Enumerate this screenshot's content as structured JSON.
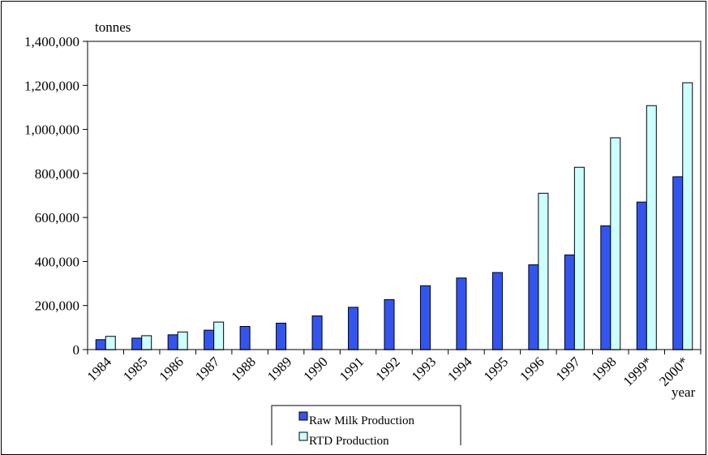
{
  "chart_data": {
    "type": "bar",
    "ylabel": "tonnes",
    "xlabel": "year",
    "ylim": [
      0,
      1400000
    ],
    "yticks": [
      "0",
      "200,000",
      "400,000",
      "600,000",
      "800,000",
      "1,000,000",
      "1,200,000",
      "1,400,000"
    ],
    "ytick_values": [
      0,
      200000,
      400000,
      600000,
      800000,
      1000000,
      1200000,
      1400000
    ],
    "categories": [
      "1984",
      "1985",
      "1986",
      "1987",
      "1988",
      "1989",
      "1990",
      "1991",
      "1992",
      "1993",
      "1994",
      "1995",
      "1996",
      "1997",
      "1998",
      "1999*",
      "2000*"
    ],
    "series": [
      {
        "name": "Raw Milk Production",
        "color": "#3355ee",
        "values": [
          45000,
          52000,
          67000,
          88000,
          105000,
          120000,
          153000,
          192000,
          227000,
          290000,
          325000,
          350000,
          385000,
          430000,
          562000,
          670000,
          785000
        ]
      },
      {
        "name": "RTD Production",
        "color": "#ccffff",
        "values": [
          60000,
          63000,
          80000,
          125000,
          null,
          null,
          null,
          null,
          null,
          null,
          null,
          null,
          710000,
          828000,
          962000,
          1108000,
          1212000
        ]
      }
    ],
    "grid": false,
    "legend_position": "bottom-center"
  }
}
